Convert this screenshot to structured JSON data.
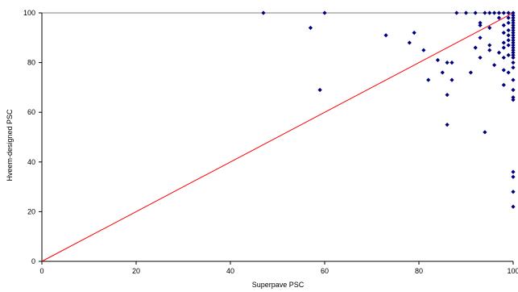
{
  "chart_data": {
    "type": "scatter",
    "title": "",
    "xlabel": "Superpave PSC",
    "ylabel": "Hveem-designed PSC",
    "xlim": [
      0,
      100
    ],
    "ylim": [
      0,
      100
    ],
    "x_ticks": [
      "0",
      "20",
      "40",
      "60",
      "80",
      "100"
    ],
    "y_ticks": [
      "0",
      "20",
      "40",
      "60",
      "80",
      "100"
    ],
    "grid": "horizontal line at y = 100 only",
    "legend": "none",
    "reference_line": {
      "from": [
        0,
        0
      ],
      "to": [
        100,
        100
      ],
      "color": "#ff0000"
    },
    "colors": {
      "points": "#000080",
      "line": "#ff0000",
      "axes": "#000000"
    },
    "series": [
      {
        "values": [
          [
            47,
            100
          ],
          [
            60,
            100
          ],
          [
            57,
            94
          ],
          [
            59,
            69
          ],
          [
            73,
            91
          ],
          [
            78,
            88
          ],
          [
            79,
            92
          ],
          [
            81,
            85
          ],
          [
            82,
            73
          ],
          [
            84,
            81
          ],
          [
            85,
            76
          ],
          [
            86,
            80
          ],
          [
            86,
            67
          ],
          [
            86,
            55
          ],
          [
            87,
            80
          ],
          [
            87,
            73
          ],
          [
            88,
            100
          ],
          [
            90,
            100
          ],
          [
            91,
            76
          ],
          [
            92,
            100
          ],
          [
            92,
            86
          ],
          [
            93,
            96
          ],
          [
            93,
            95
          ],
          [
            93,
            90
          ],
          [
            93,
            82
          ],
          [
            94,
            100
          ],
          [
            94,
            52
          ],
          [
            95,
            100
          ],
          [
            95,
            94
          ],
          [
            95,
            87
          ],
          [
            95,
            85
          ],
          [
            96,
            100
          ],
          [
            96,
            79
          ],
          [
            97,
            100
          ],
          [
            97,
            98
          ],
          [
            97,
            84
          ],
          [
            98,
            100
          ],
          [
            98,
            95
          ],
          [
            98,
            92
          ],
          [
            98,
            88
          ],
          [
            98,
            86
          ],
          [
            98,
            82
          ],
          [
            98,
            77
          ],
          [
            98,
            71
          ],
          [
            99,
            100
          ],
          [
            99,
            98
          ],
          [
            99,
            96
          ],
          [
            99,
            93
          ],
          [
            99,
            91
          ],
          [
            99,
            89
          ],
          [
            99,
            87
          ],
          [
            99,
            83
          ],
          [
            99,
            76
          ],
          [
            100,
            100
          ],
          [
            100,
            99
          ],
          [
            100,
            98
          ],
          [
            100,
            97
          ],
          [
            100,
            96
          ],
          [
            100,
            95
          ],
          [
            100,
            94
          ],
          [
            100,
            93
          ],
          [
            100,
            92
          ],
          [
            100,
            91
          ],
          [
            100,
            90
          ],
          [
            100,
            89
          ],
          [
            100,
            88
          ],
          [
            100,
            87
          ],
          [
            100,
            86
          ],
          [
            100,
            85
          ],
          [
            100,
            84
          ],
          [
            100,
            83
          ],
          [
            100,
            82
          ],
          [
            100,
            80
          ],
          [
            100,
            78
          ],
          [
            100,
            73
          ],
          [
            100,
            69
          ],
          [
            100,
            66
          ],
          [
            100,
            65
          ],
          [
            100,
            36
          ],
          [
            100,
            34
          ],
          [
            100,
            28
          ],
          [
            100,
            22
          ]
        ]
      }
    ]
  }
}
